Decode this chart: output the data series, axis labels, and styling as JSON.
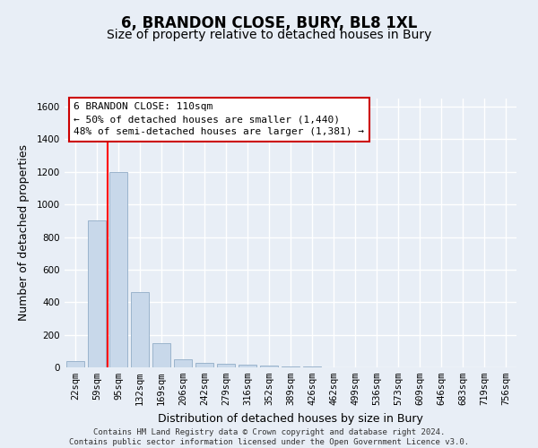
{
  "title": "6, BRANDON CLOSE, BURY, BL8 1XL",
  "subtitle": "Size of property relative to detached houses in Bury",
  "xlabel": "Distribution of detached houses by size in Bury",
  "ylabel": "Number of detached properties",
  "bin_labels": [
    "22sqm",
    "59sqm",
    "95sqm",
    "132sqm",
    "169sqm",
    "206sqm",
    "242sqm",
    "279sqm",
    "316sqm",
    "352sqm",
    "389sqm",
    "426sqm",
    "462sqm",
    "499sqm",
    "536sqm",
    "573sqm",
    "609sqm",
    "646sqm",
    "683sqm",
    "719sqm",
    "756sqm"
  ],
  "bar_heights": [
    40,
    900,
    1200,
    460,
    150,
    50,
    30,
    20,
    15,
    10,
    3,
    3,
    0,
    0,
    0,
    0,
    0,
    0,
    0,
    0,
    0
  ],
  "bar_color": "#c8d8ea",
  "bar_edge_color": "#9bb4cc",
  "red_line_x": 1.5,
  "annotation_text": "6 BRANDON CLOSE: 110sqm\n← 50% of detached houses are smaller (1,440)\n48% of semi-detached houses are larger (1,381) →",
  "annotation_box_color": "#ffffff",
  "annotation_box_edge_color": "#cc0000",
  "ylim": [
    0,
    1650
  ],
  "yticks": [
    0,
    200,
    400,
    600,
    800,
    1000,
    1200,
    1400,
    1600
  ],
  "footer": "Contains HM Land Registry data © Crown copyright and database right 2024.\nContains public sector information licensed under the Open Government Licence v3.0.",
  "background_color": "#e8eef6",
  "plot_background_color": "#e8eef6",
  "grid_color": "#ffffff",
  "title_fontsize": 12,
  "subtitle_fontsize": 10,
  "label_fontsize": 9,
  "tick_fontsize": 7.5,
  "footer_fontsize": 6.5
}
